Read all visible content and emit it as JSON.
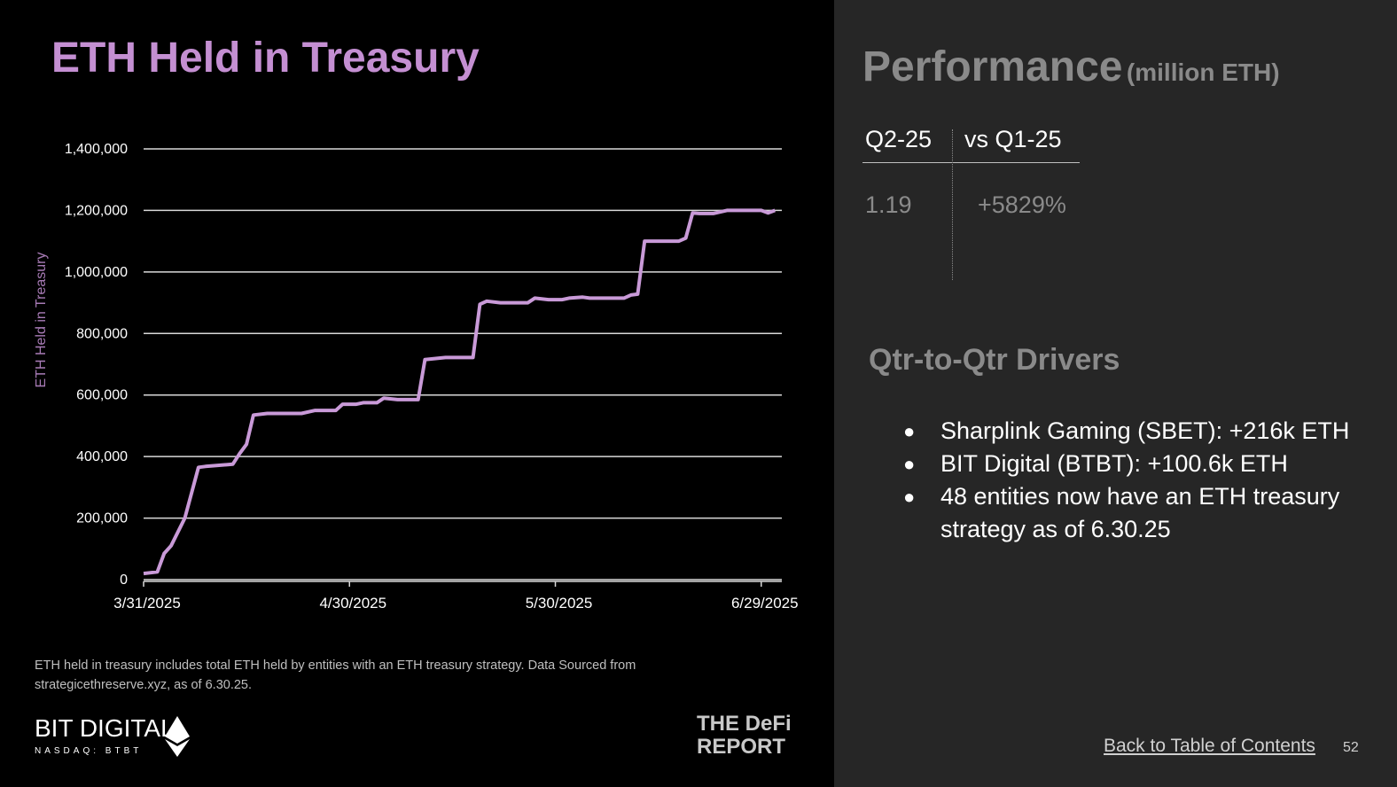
{
  "chart_data": {
    "type": "line",
    "title": "ETH Held in Treasury",
    "y_label": "ETH Held in Treasury",
    "color": "#c99ad8",
    "x": [
      "2025-03-31",
      "2025-04-02",
      "2025-04-03",
      "2025-04-04",
      "2025-04-06",
      "2025-04-08",
      "2025-04-09",
      "2025-04-13",
      "2025-04-14",
      "2025-04-15",
      "2025-04-16",
      "2025-04-18",
      "2025-04-23",
      "2025-04-25",
      "2025-04-28",
      "2025-04-29",
      "2025-05-01",
      "2025-05-02",
      "2025-05-04",
      "2025-05-05",
      "2025-05-07",
      "2025-05-10",
      "2025-05-11",
      "2025-05-14",
      "2025-05-18",
      "2025-05-19",
      "2025-05-20",
      "2025-05-22",
      "2025-05-26",
      "2025-05-27",
      "2025-05-29",
      "2025-05-31",
      "2025-06-01",
      "2025-06-03",
      "2025-06-04",
      "2025-06-09",
      "2025-06-10",
      "2025-06-11",
      "2025-06-12",
      "2025-06-17",
      "2025-06-18",
      "2025-06-19",
      "2025-06-20",
      "2025-06-22",
      "2025-06-24",
      "2025-06-29",
      "2025-06-30",
      "2025-07-01"
    ],
    "values": [
      20000,
      25000,
      85000,
      110000,
      200000,
      365000,
      368000,
      375000,
      410000,
      440000,
      535000,
      540000,
      540000,
      550000,
      550000,
      570000,
      570000,
      575000,
      575000,
      590000,
      585000,
      585000,
      715000,
      722000,
      722000,
      895000,
      905000,
      900000,
      900000,
      915000,
      910000,
      910000,
      915000,
      918000,
      915000,
      915000,
      925000,
      928000,
      1100000,
      1100000,
      1110000,
      1192000,
      1190000,
      1190000,
      1200000,
      1200000,
      1192000,
      1200000
    ],
    "xlim": [
      "2025-03-31",
      "2025-07-02"
    ],
    "xticks": [
      {
        "value": "2025-03-31",
        "label": "3/31/2025"
      },
      {
        "value": "2025-04-30",
        "label": "4/30/2025"
      },
      {
        "value": "2025-05-30",
        "label": "5/30/2025"
      },
      {
        "value": "2025-06-29",
        "label": "6/29/2025"
      }
    ],
    "ylim": [
      0,
      1400000
    ],
    "yticks": [
      0,
      {
        "value": 200000,
        "label": "200,000"
      },
      {
        "value": 400000,
        "label": "400,000"
      },
      {
        "value": 600000,
        "label": "600,000"
      },
      {
        "value": 800000,
        "label": "800,000"
      },
      {
        "value": 1000000,
        "label": "1,000,000"
      },
      {
        "value": 1200000,
        "label": "1,200,000"
      },
      {
        "value": 1400000,
        "label": "1,400,000"
      }
    ],
    "grid": true
  },
  "footnote": "ETH held in treasury includes total ETH held by entities with an ETH treasury strategy. Data Sourced from strategicethreserve.xyz, as of 6.30.25.",
  "branding": {
    "company": "BIT DIGITAL",
    "ticker": "NASDAQ: BTBT",
    "partner_1": "THE DeFi",
    "partner_2": "REPORT"
  },
  "performance": {
    "title": "Performance",
    "unit": "(million ETH)",
    "headers": [
      "Q2-25",
      "vs Q1-25"
    ],
    "row": [
      "1.19",
      "+5829%"
    ]
  },
  "drivers": {
    "title": "Qtr-to-Qtr Drivers",
    "items": [
      "Sharplink Gaming (SBET): +216k ETH",
      "BIT Digital (BTBT): +100.6k ETH",
      "48 entities now have an ETH treasury strategy as of 6.30.25"
    ]
  },
  "footer": {
    "link": "Back to Table of Contents",
    "page": "52"
  }
}
